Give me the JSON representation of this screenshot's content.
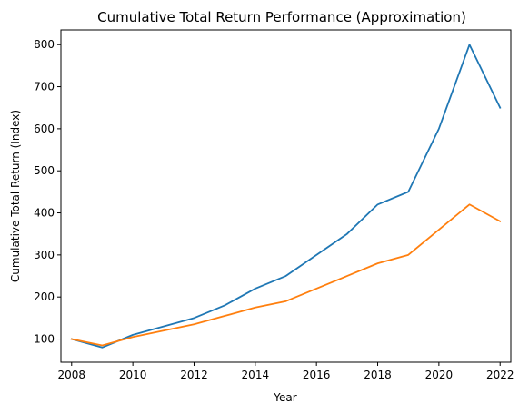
{
  "chart_data": {
    "type": "line",
    "title": "Cumulative Total Return Performance (Approximation)",
    "xlabel": "Year",
    "ylabel": "Cumulative Total Return (Index)",
    "xlim": [
      2007.65,
      2022.35
    ],
    "ylim": [
      45,
      835
    ],
    "x_ticks": [
      2008,
      2010,
      2012,
      2014,
      2016,
      2018,
      2020,
      2022
    ],
    "y_ticks": [
      100,
      200,
      300,
      400,
      500,
      600,
      700,
      800
    ],
    "grid": false,
    "x": [
      2008,
      2009,
      2010,
      2011,
      2012,
      2013,
      2014,
      2015,
      2016,
      2017,
      2018,
      2019,
      2020,
      2021,
      2022
    ],
    "series": [
      {
        "color": "#1f77b4",
        "values": [
          100,
          80,
          110,
          130,
          150,
          180,
          220,
          250,
          300,
          350,
          420,
          450,
          600,
          800,
          650
        ]
      },
      {
        "color": "#ff7f0e",
        "values": [
          100,
          85,
          105,
          120,
          135,
          155,
          175,
          190,
          220,
          250,
          280,
          300,
          360,
          420,
          380
        ]
      }
    ]
  }
}
